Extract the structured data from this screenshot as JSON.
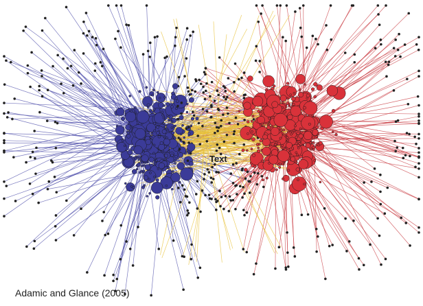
{
  "caption": "Adamic and Glance (2005)",
  "center_label": "Text"
}
